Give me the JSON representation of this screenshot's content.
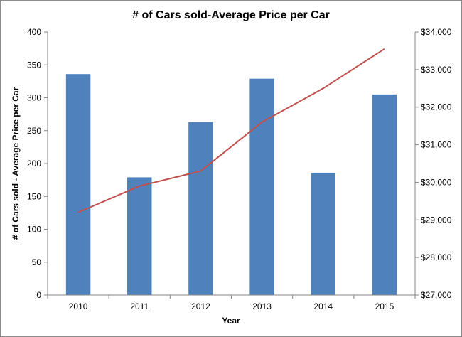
{
  "chart_data": {
    "type": "bar",
    "title": "# of Cars sold-Average Price per Car",
    "xlabel": "Year",
    "ylabel": "# of Cars sold - Average Price per Car",
    "y2label": "",
    "categories": [
      "2010",
      "2011",
      "2012",
      "2013",
      "2014",
      "2015"
    ],
    "ylim": [
      0,
      400
    ],
    "yticks": [
      "0",
      "50",
      "100",
      "150",
      "200",
      "250",
      "300",
      "350",
      "400"
    ],
    "y2lim": [
      27000,
      34000
    ],
    "y2ticks": [
      "$27,000",
      "$28,000",
      "$29,000",
      "$30,000",
      "$31,000",
      "$32,000",
      "$33,000",
      "$34,000"
    ],
    "grid": false,
    "legend": "none",
    "series": [
      {
        "type": "bar",
        "axis": "left",
        "color": "#4f81bd",
        "values": [
          336,
          179,
          263,
          329,
          186,
          305
        ]
      },
      {
        "type": "line",
        "axis": "right",
        "color": "#c0504d",
        "values": [
          29200,
          29900,
          30300,
          31600,
          32500,
          33550
        ]
      }
    ]
  }
}
